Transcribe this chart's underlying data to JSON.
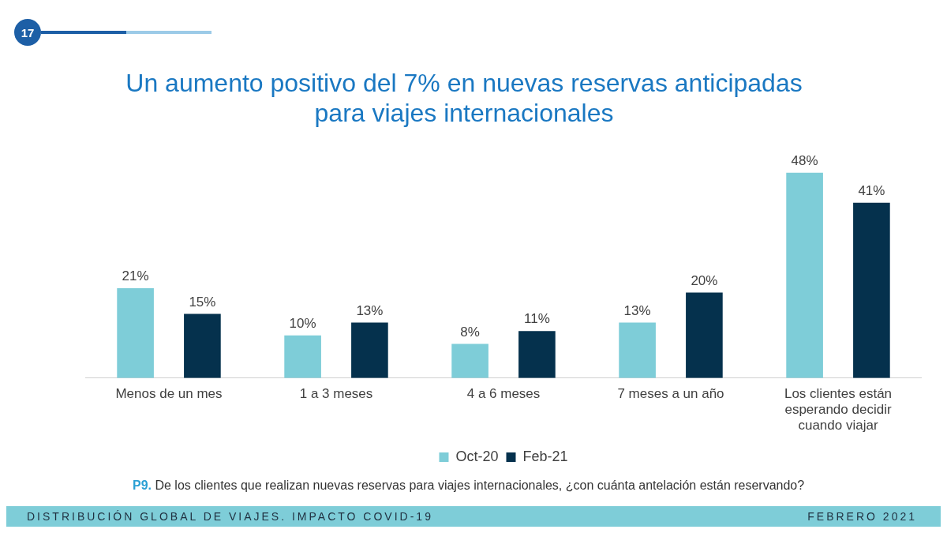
{
  "chart_data": {
    "type": "bar",
    "title": "Un aumento positivo del 7% en nuevas reservas anticipadas para viajes internacionales",
    "categories": [
      "Menos de un mes",
      "1 a 3 meses",
      "4 a 6 meses",
      "7 meses a un año",
      "Los clientes están esperando decidir cuando viajar"
    ],
    "series": [
      {
        "name": "Oct-20",
        "color": "#7ecdd8",
        "values": [
          21,
          10,
          8,
          13,
          48
        ],
        "value_labels": [
          "21%",
          "10%",
          "8%",
          "13%",
          "48%"
        ]
      },
      {
        "name": "Feb-21",
        "color": "#05314d",
        "values": [
          15,
          13,
          11,
          20,
          41
        ],
        "value_labels": [
          "15%",
          "13%",
          "11%",
          "20%",
          "41%"
        ]
      }
    ],
    "legend": "bottom",
    "grid": false,
    "annotations": [
      "17",
      "P9. De los clientes que realizan nuevas reservas para viajes internacionales, ¿con cuánta antelación están reservando?",
      "DISTRIBUCIÓN GLOBAL DE VIAJES. IMPACTO COVID-19",
      "FEBRERO 2021"
    ]
  }
}
